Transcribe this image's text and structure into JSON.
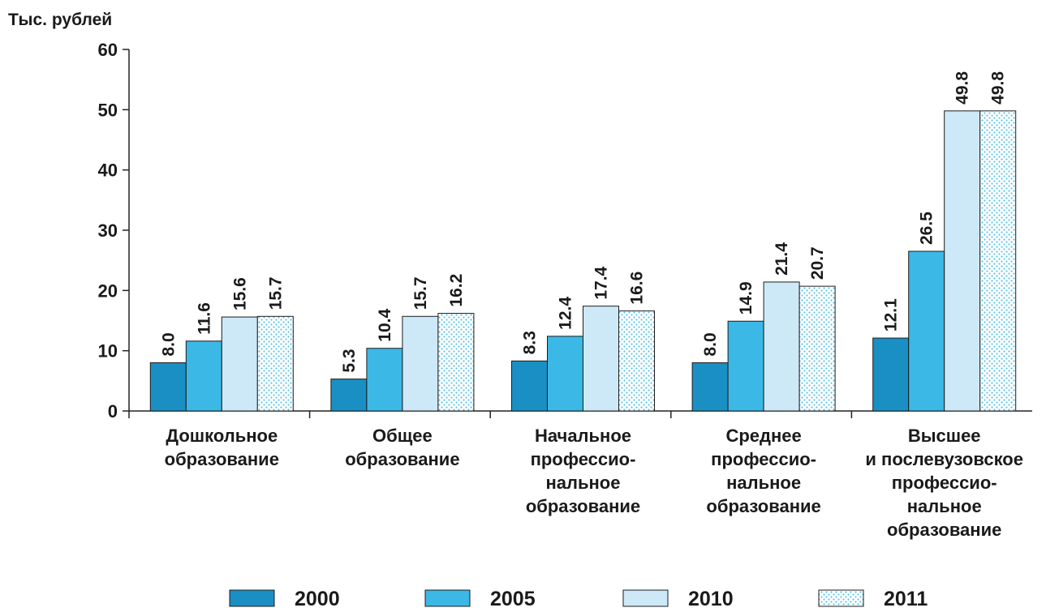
{
  "chart_data": {
    "type": "bar",
    "ylabel": "Тыс. рублей",
    "ylim": [
      0,
      60
    ],
    "yticks": [
      0,
      10,
      20,
      30,
      40,
      50,
      60
    ],
    "grid": false,
    "legend_position": "bottom",
    "categories": [
      [
        "Дошкольное",
        "образование"
      ],
      [
        "Общее",
        "образование"
      ],
      [
        "Начальное",
        "профессио-",
        "нальное",
        "образование"
      ],
      [
        "Среднее",
        "профессио-",
        "нальное",
        "образование"
      ],
      [
        "Высшее",
        "и послевузовское",
        "профессио-",
        "нальное",
        "образование"
      ]
    ],
    "series": [
      {
        "name": "2000",
        "color": "#1a8fc4",
        "pattern": "solid",
        "values": [
          8.0,
          5.3,
          8.3,
          8.0,
          12.1
        ],
        "labels": [
          "8.0",
          "5.3",
          "8.3",
          "8.0",
          "12.1"
        ]
      },
      {
        "name": "2005",
        "color": "#3bb8e6",
        "pattern": "solid",
        "values": [
          11.6,
          10.4,
          12.4,
          14.9,
          26.5
        ],
        "labels": [
          "11.6",
          "10.4",
          "12.4",
          "14.9",
          "26.5"
        ]
      },
      {
        "name": "2010",
        "color": "#cde9f7",
        "pattern": "solid",
        "values": [
          15.6,
          15.7,
          17.4,
          21.4,
          49.8
        ],
        "labels": [
          "15.6",
          "15.7",
          "17.4",
          "21.4",
          "49.8"
        ]
      },
      {
        "name": "2011",
        "color": "#5cc3e6",
        "pattern": "dotted",
        "values": [
          15.7,
          16.2,
          16.6,
          20.7,
          49.8
        ],
        "labels": [
          "15.7",
          "16.2",
          "16.6",
          "20.7",
          "49.8"
        ]
      }
    ]
  }
}
